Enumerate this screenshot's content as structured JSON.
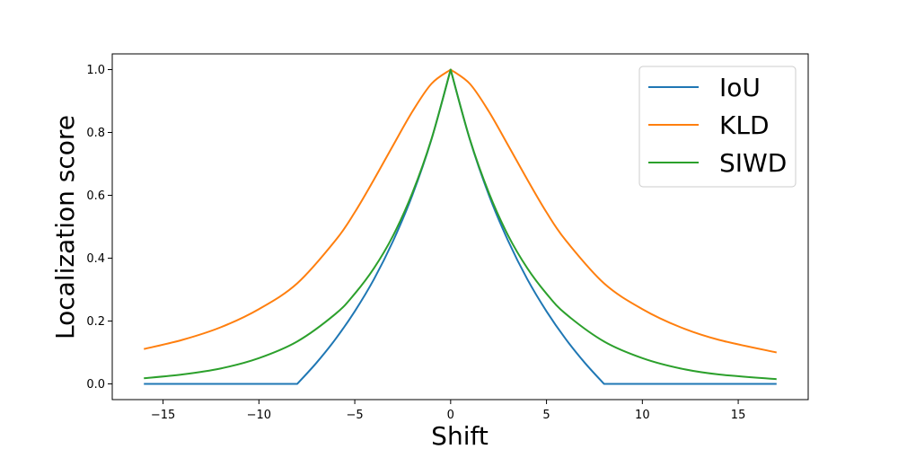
{
  "chart_data": {
    "type": "line",
    "title": "",
    "xlabel": "Shift",
    "ylabel": "Localization score",
    "xlim": [
      -17.65,
      18.65
    ],
    "ylim": [
      -0.05,
      1.05
    ],
    "xticks": [
      -15,
      -10,
      -5,
      0,
      5,
      10,
      15
    ],
    "xtick_labels": [
      "−15",
      "−10",
      "−5",
      "0",
      "5",
      "10",
      "15"
    ],
    "yticks": [
      0.0,
      0.2,
      0.4,
      0.6,
      0.8,
      1.0
    ],
    "ytick_labels": [
      "0.0",
      "0.2",
      "0.4",
      "0.6",
      "0.8",
      "1.0"
    ],
    "grid": false,
    "legend_position": "top-right",
    "series": [
      {
        "name": "IoU",
        "color": "#1f77b4",
        "x": [
          -16,
          -12,
          -8,
          -7,
          -6,
          -5,
          -4,
          -3,
          -2,
          -1,
          0,
          1,
          2,
          3,
          4,
          5,
          6,
          7,
          8,
          12,
          17
        ],
        "y": [
          0.0,
          0.0,
          0.0,
          0.067,
          0.143,
          0.231,
          0.333,
          0.455,
          0.6,
          0.778,
          1.0,
          0.778,
          0.6,
          0.455,
          0.333,
          0.231,
          0.143,
          0.067,
          0.0,
          0.0,
          0.0
        ]
      },
      {
        "name": "KLD",
        "color": "#ff7f0e",
        "x": [
          -16,
          -14,
          -12,
          -10,
          -8,
          -6,
          -5,
          -4,
          -3,
          -2,
          -1,
          0,
          1,
          2,
          3,
          4,
          5,
          6,
          8,
          10,
          12,
          14,
          17
        ],
        "y": [
          0.111,
          0.14,
          0.18,
          0.238,
          0.32,
          0.457,
          0.546,
          0.65,
          0.759,
          0.866,
          0.955,
          1.0,
          0.955,
          0.866,
          0.759,
          0.65,
          0.546,
          0.457,
          0.32,
          0.238,
          0.18,
          0.14,
          0.1
        ]
      },
      {
        "name": "SIWD",
        "color": "#2ca02c",
        "x": [
          -16,
          -14,
          -12,
          -10,
          -8,
          -6,
          -5,
          -4,
          -3,
          -2,
          -1,
          0,
          1,
          2,
          3,
          4,
          5,
          6,
          8,
          10,
          12,
          14,
          17
        ],
        "y": [
          0.018,
          0.03,
          0.049,
          0.082,
          0.135,
          0.223,
          0.287,
          0.368,
          0.472,
          0.607,
          0.779,
          1.0,
          0.779,
          0.607,
          0.472,
          0.368,
          0.287,
          0.223,
          0.135,
          0.082,
          0.049,
          0.03,
          0.015
        ]
      }
    ]
  }
}
